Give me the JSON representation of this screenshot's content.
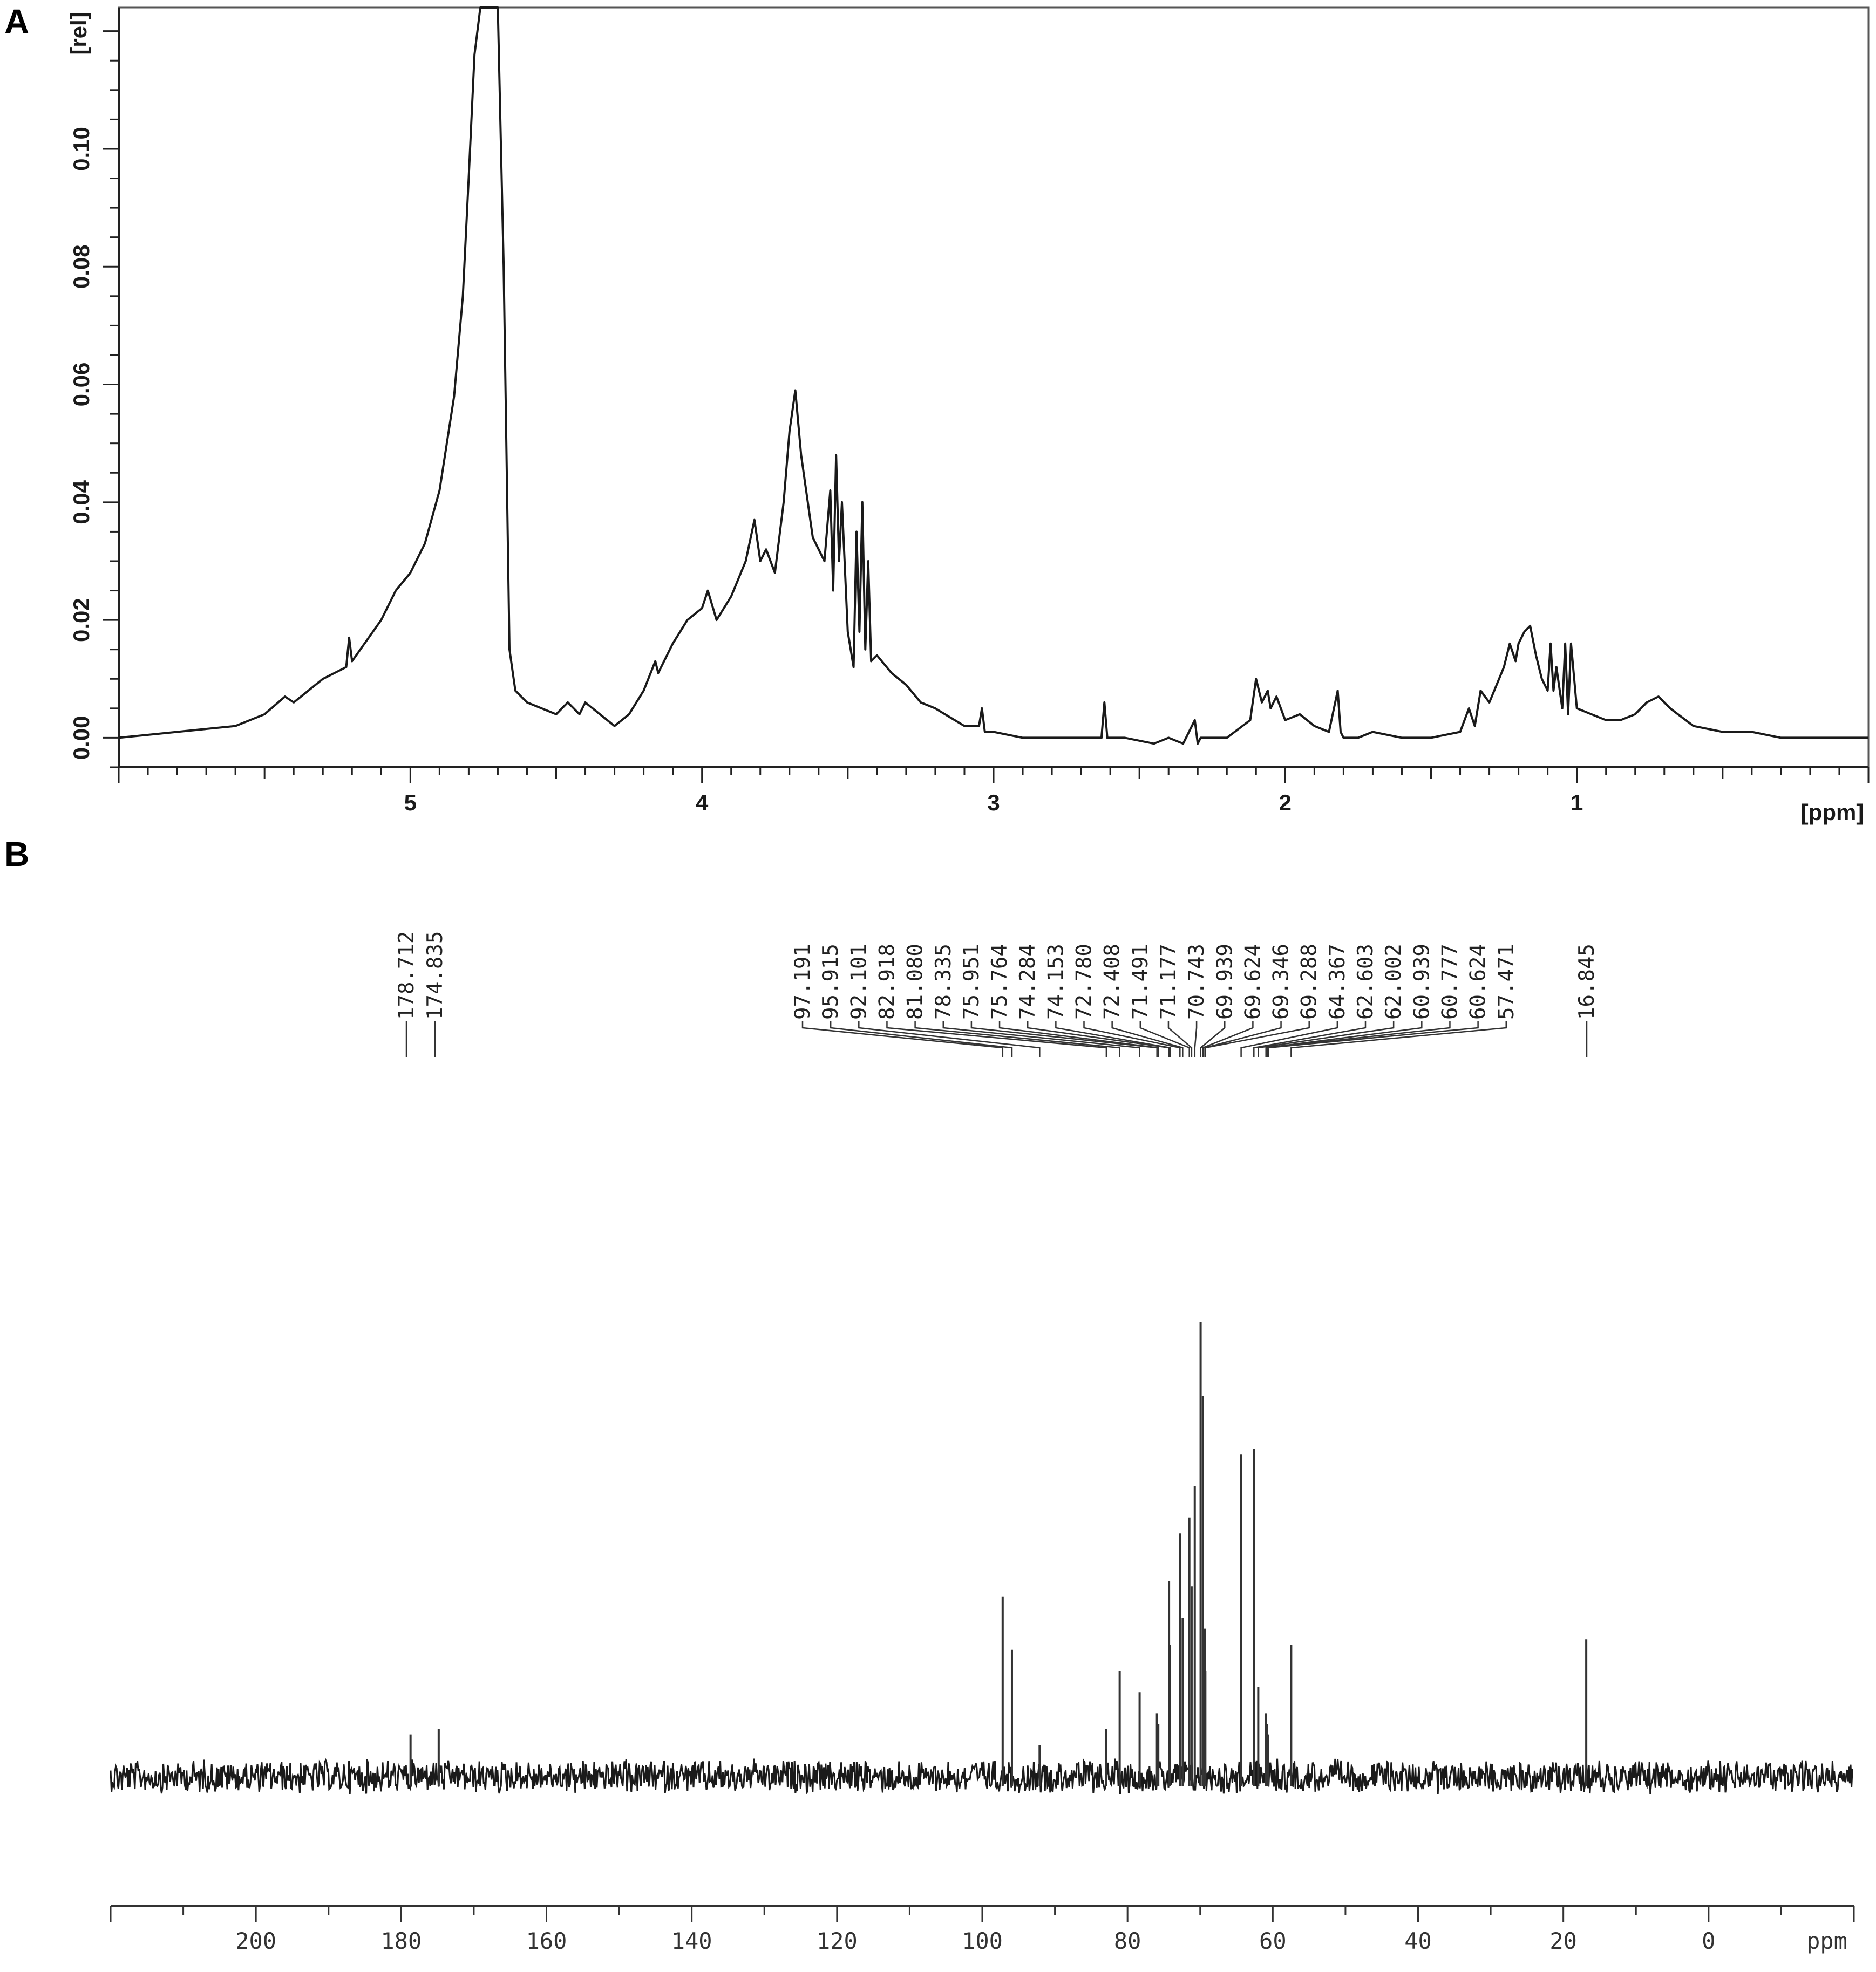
{
  "panels": {
    "a_label": "A",
    "b_label": "B"
  },
  "chart_data": [
    {
      "panel": "A",
      "type": "line",
      "xlabel": "[ppm]",
      "ylabel": "[rel]",
      "x_reversed": true,
      "xlim": [
        6.0,
        0.0
      ],
      "ylim": [
        -0.005,
        0.124
      ],
      "xticks": [
        "5",
        "4",
        "3",
        "2",
        "1"
      ],
      "xtick_values": [
        5,
        4,
        3,
        2,
        1
      ],
      "yticks": [
        "0.00",
        "0.02",
        "0.04",
        "0.06",
        "0.08",
        "0.10"
      ],
      "ytick_values": [
        0.0,
        0.02,
        0.04,
        0.06,
        0.08,
        0.1
      ],
      "x": [
        6.0,
        5.8,
        5.6,
        5.5,
        5.43,
        5.4,
        5.3,
        5.22,
        5.21,
        5.2,
        5.1,
        5.05,
        5.0,
        4.95,
        4.9,
        4.85,
        4.82,
        4.8,
        4.78,
        4.76,
        4.74,
        4.72,
        4.7,
        4.68,
        4.66,
        4.64,
        4.6,
        4.55,
        4.5,
        4.46,
        4.42,
        4.4,
        4.35,
        4.3,
        4.25,
        4.2,
        4.16,
        4.15,
        4.1,
        4.05,
        4.0,
        3.98,
        3.95,
        3.9,
        3.85,
        3.82,
        3.8,
        3.78,
        3.75,
        3.72,
        3.7,
        3.68,
        3.66,
        3.62,
        3.58,
        3.56,
        3.55,
        3.54,
        3.53,
        3.52,
        3.5,
        3.48,
        3.47,
        3.46,
        3.45,
        3.44,
        3.43,
        3.42,
        3.4,
        3.35,
        3.3,
        3.25,
        3.2,
        3.1,
        3.05,
        3.04,
        3.03,
        3.0,
        2.9,
        2.8,
        2.7,
        2.63,
        2.62,
        2.61,
        2.55,
        2.45,
        2.4,
        2.35,
        2.31,
        2.3,
        2.29,
        2.2,
        2.12,
        2.1,
        2.08,
        2.06,
        2.05,
        2.03,
        2.0,
        1.95,
        1.9,
        1.85,
        1.82,
        1.81,
        1.8,
        1.75,
        1.7,
        1.6,
        1.5,
        1.4,
        1.37,
        1.35,
        1.33,
        1.3,
        1.25,
        1.23,
        1.21,
        1.2,
        1.18,
        1.16,
        1.14,
        1.12,
        1.1,
        1.09,
        1.08,
        1.07,
        1.05,
        1.04,
        1.03,
        1.02,
        1.0,
        0.95,
        0.9,
        0.85,
        0.8,
        0.76,
        0.72,
        0.68,
        0.6,
        0.5,
        0.4,
        0.3,
        0.2,
        0.1,
        0.0
      ],
      "y": [
        0.0,
        0.001,
        0.002,
        0.004,
        0.007,
        0.006,
        0.01,
        0.012,
        0.017,
        0.013,
        0.02,
        0.025,
        0.028,
        0.033,
        0.042,
        0.058,
        0.075,
        0.095,
        0.116,
        0.124,
        0.124,
        0.124,
        0.124,
        0.08,
        0.015,
        0.008,
        0.006,
        0.005,
        0.004,
        0.006,
        0.004,
        0.006,
        0.004,
        0.002,
        0.004,
        0.008,
        0.013,
        0.011,
        0.016,
        0.02,
        0.022,
        0.025,
        0.02,
        0.024,
        0.03,
        0.037,
        0.03,
        0.032,
        0.028,
        0.04,
        0.052,
        0.059,
        0.048,
        0.034,
        0.03,
        0.042,
        0.025,
        0.048,
        0.03,
        0.04,
        0.018,
        0.012,
        0.035,
        0.018,
        0.04,
        0.015,
        0.03,
        0.013,
        0.014,
        0.011,
        0.009,
        0.006,
        0.005,
        0.002,
        0.002,
        0.005,
        0.001,
        0.001,
        0.0,
        0.0,
        0.0,
        0.0,
        0.006,
        0.0,
        0.0,
        -0.001,
        0.0,
        -0.001,
        0.003,
        -0.001,
        0.0,
        0.0,
        0.003,
        0.01,
        0.006,
        0.008,
        0.005,
        0.007,
        0.003,
        0.004,
        0.002,
        0.001,
        0.008,
        0.001,
        0.0,
        0.0,
        0.001,
        0.0,
        0.0,
        0.001,
        0.005,
        0.002,
        0.008,
        0.006,
        0.012,
        0.016,
        0.013,
        0.016,
        0.018,
        0.019,
        0.014,
        0.01,
        0.008,
        0.016,
        0.008,
        0.012,
        0.005,
        0.016,
        0.004,
        0.016,
        0.005,
        0.004,
        0.003,
        0.003,
        0.004,
        0.006,
        0.007,
        0.005,
        0.002,
        0.001,
        0.001,
        0.0,
        0.0,
        0.0,
        0.0
      ]
    },
    {
      "panel": "B",
      "type": "line",
      "xlabel": "ppm",
      "x_reversed": true,
      "xlim": [
        220,
        -20
      ],
      "xticks": [
        "200",
        "180",
        "160",
        "140",
        "120",
        "100",
        "80",
        "60",
        "40",
        "20",
        "0"
      ],
      "xtick_values": [
        200,
        180,
        160,
        140,
        120,
        100,
        80,
        60,
        40,
        20,
        0
      ],
      "peak_labels": [
        "178.712",
        "174.835",
        "97.191",
        "95.915",
        "92.101",
        "82.918",
        "81.080",
        "78.335",
        "75.951",
        "75.764",
        "74.284",
        "74.153",
        "72.780",
        "72.408",
        "71.491",
        "71.177",
        "70.743",
        "69.939",
        "69.624",
        "69.346",
        "69.288",
        "64.367",
        "62.603",
        "62.002",
        "60.939",
        "60.777",
        "60.624",
        "57.471",
        "16.845"
      ],
      "peaks": [
        {
          "ppm": 178.712,
          "intensity": 0.08
        },
        {
          "ppm": 174.835,
          "intensity": 0.09
        },
        {
          "ppm": 97.191,
          "intensity": 0.34
        },
        {
          "ppm": 95.915,
          "intensity": 0.24
        },
        {
          "ppm": 92.101,
          "intensity": 0.06
        },
        {
          "ppm": 82.918,
          "intensity": 0.09
        },
        {
          "ppm": 81.08,
          "intensity": 0.2
        },
        {
          "ppm": 78.335,
          "intensity": 0.16
        },
        {
          "ppm": 75.951,
          "intensity": 0.12
        },
        {
          "ppm": 75.764,
          "intensity": 0.1
        },
        {
          "ppm": 74.284,
          "intensity": 0.37
        },
        {
          "ppm": 74.153,
          "intensity": 0.25
        },
        {
          "ppm": 72.78,
          "intensity": 0.46
        },
        {
          "ppm": 72.408,
          "intensity": 0.3
        },
        {
          "ppm": 71.491,
          "intensity": 0.49
        },
        {
          "ppm": 71.177,
          "intensity": 0.36
        },
        {
          "ppm": 70.743,
          "intensity": 0.55
        },
        {
          "ppm": 69.939,
          "intensity": 0.86
        },
        {
          "ppm": 69.624,
          "intensity": 0.72
        },
        {
          "ppm": 69.346,
          "intensity": 0.28
        },
        {
          "ppm": 69.288,
          "intensity": 0.2
        },
        {
          "ppm": 64.367,
          "intensity": 0.61
        },
        {
          "ppm": 62.603,
          "intensity": 0.62
        },
        {
          "ppm": 62.002,
          "intensity": 0.17
        },
        {
          "ppm": 60.939,
          "intensity": 0.12
        },
        {
          "ppm": 60.777,
          "intensity": 0.1
        },
        {
          "ppm": 60.624,
          "intensity": 0.08
        },
        {
          "ppm": 57.471,
          "intensity": 0.25
        },
        {
          "ppm": 16.845,
          "intensity": 0.26
        }
      ]
    }
  ]
}
